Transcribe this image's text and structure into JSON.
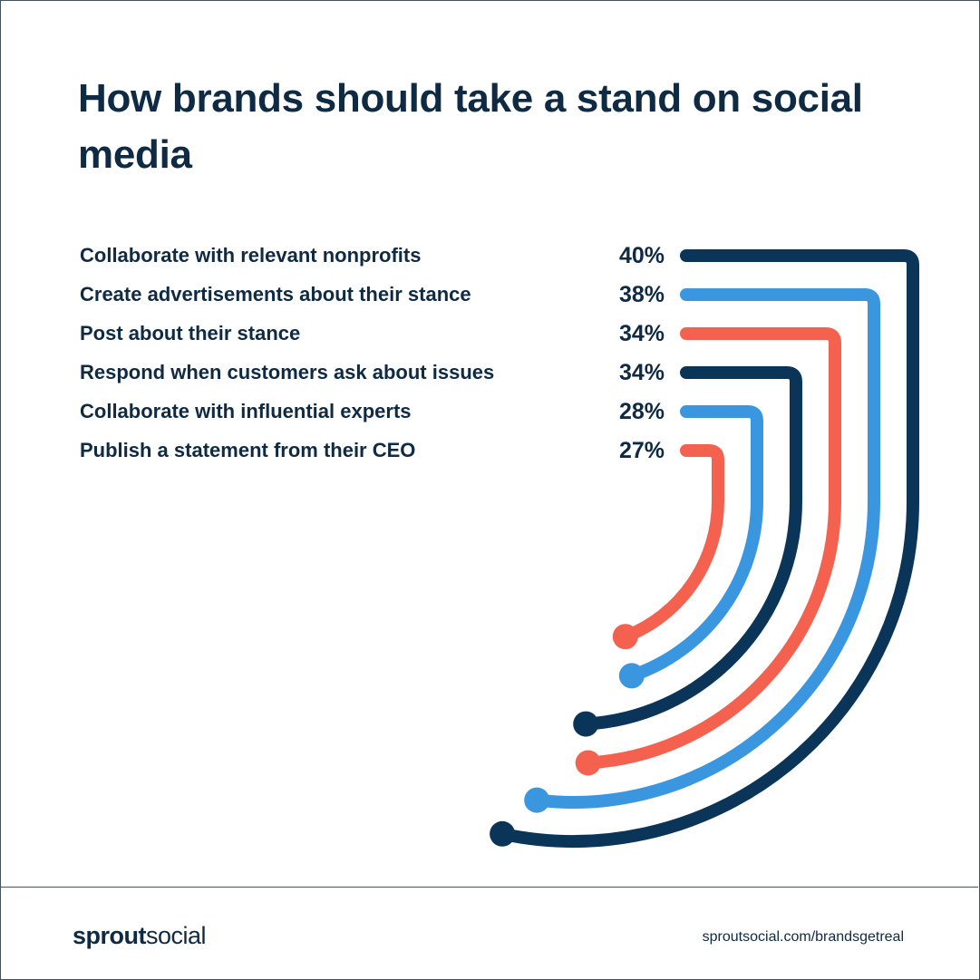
{
  "title": "How brands should take a stand on social media",
  "chart_data": {
    "type": "bar",
    "style": "radial-arc",
    "categories": [
      "Collaborate with relevant nonprofits",
      "Create advertisements about their stance",
      "Post about their stance",
      "Respond when customers ask about issues",
      "Collaborate with influential experts",
      "Publish a statement from their CEO"
    ],
    "values": [
      40,
      38,
      34,
      34,
      28,
      27
    ],
    "value_labels": [
      "40%",
      "38%",
      "34%",
      "34%",
      "28%",
      "27%"
    ],
    "colors": [
      "#0b3558",
      "#3b96e0",
      "#f4614f",
      "#0b3558",
      "#3b96e0",
      "#f4614f"
    ],
    "title": "How brands should take a stand on social media"
  },
  "footer": {
    "logo_bold": "sprout",
    "logo_light": "social",
    "url": "sproutsocial.com/brandsgetreal"
  }
}
